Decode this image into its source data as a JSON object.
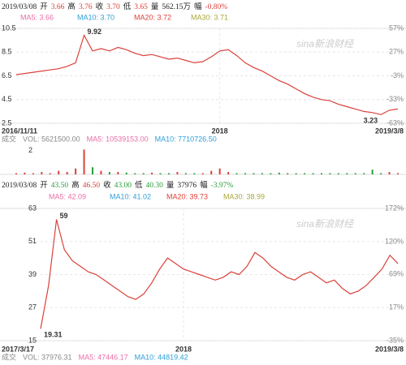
{
  "chart_data": [
    {
      "type": "line",
      "color": "#d9413a",
      "header": [
        {
          "text": "2019/03/08",
          "color": "#222"
        },
        {
          "text": "开",
          "color": "#222"
        },
        {
          "text": "3.66",
          "color": "#d9413a"
        },
        {
          "text": "高",
          "color": "#222"
        },
        {
          "text": "3.76",
          "color": "#d9413a"
        },
        {
          "text": "收",
          "color": "#222"
        },
        {
          "text": "3.70",
          "color": "#d9413a"
        },
        {
          "text": "低",
          "color": "#222"
        },
        {
          "text": "3.65",
          "color": "#d9413a"
        },
        {
          "text": "量",
          "color": "#222"
        },
        {
          "text": "562.15万",
          "color": "#222"
        },
        {
          "text": "幅",
          "color": "#222"
        },
        {
          "text": "-0.80%",
          "color": "#d9413a"
        }
      ],
      "legend": [
        {
          "text": "MA5: 3.66",
          "color": "#e86fa6"
        },
        {
          "text": "MA10: 3.70",
          "color": "#2e9fd8"
        },
        {
          "text": "MA20: 3.72",
          "color": "#e0413a"
        },
        {
          "text": "MA30: 3.71",
          "color": "#a8a83a"
        }
      ],
      "watermark": "sina新浪财经",
      "categories": [
        "2016/11/11",
        null,
        null,
        null,
        null,
        null,
        null,
        null,
        null,
        null,
        null,
        null,
        null,
        null,
        null,
        null,
        null,
        null,
        null,
        null,
        null,
        null,
        null,
        null,
        "2018",
        null,
        null,
        null,
        null,
        null,
        null,
        null,
        null,
        null,
        null,
        null,
        null,
        null,
        null,
        null,
        null,
        null,
        null,
        null,
        null,
        "2019/3/8"
      ],
      "values": [
        6.6,
        6.7,
        6.8,
        6.9,
        7.0,
        7.1,
        7.3,
        7.6,
        9.92,
        8.6,
        8.8,
        8.6,
        8.9,
        8.7,
        8.4,
        8.2,
        8.3,
        8.1,
        7.9,
        8.0,
        7.8,
        7.6,
        7.7,
        8.1,
        8.6,
        8.7,
        8.2,
        7.6,
        7.2,
        6.9,
        6.5,
        6.1,
        5.8,
        5.4,
        5.0,
        4.7,
        4.5,
        4.4,
        4.1,
        3.9,
        3.7,
        3.5,
        3.4,
        3.23,
        3.6,
        3.7
      ],
      "ylim": [
        2.5,
        10.5
      ],
      "yticks": [
        2.5,
        4.5,
        6.5,
        8.5,
        10.5
      ],
      "y2lim": [
        -63,
        57
      ],
      "y2ticks": [
        {
          "value": -63,
          "label": "-63%"
        },
        {
          "value": -33,
          "label": "-33%"
        },
        {
          "value": -3,
          "label": "-3%"
        },
        {
          "value": 27,
          "label": "27%"
        },
        {
          "value": 57,
          "label": "57%"
        }
      ],
      "grid": true,
      "volume_header": [
        {
          "text": "成交",
          "color": "#888"
        },
        {
          "text": "VOL: 5621500.00",
          "color": "#888"
        },
        {
          "text": "MA5: 10539153.00",
          "color": "#e86fa6"
        },
        {
          "text": "MA10: 7710726.50",
          "color": "#2e9fd8"
        }
      ],
      "volume": [
        0.1,
        0.15,
        0.1,
        0.2,
        0.1,
        0.3,
        0.2,
        0.5,
        2.1,
        0.6,
        0.3,
        0.2,
        0.2,
        0.15,
        0.1,
        0.1,
        0.15,
        0.1,
        0.1,
        0.2,
        0.1,
        0.1,
        0.1,
        0.3,
        0.5,
        0.2,
        0.1,
        0.1,
        0.1,
        0.1,
        0.1,
        0.15,
        0.1,
        0.1,
        0.1,
        0.1,
        0.1,
        0.1,
        0.1,
        0.1,
        0.1,
        0.1,
        0.4,
        0.1,
        0.2,
        0.1
      ],
      "volume_lim": [
        0,
        2.4
      ],
      "volume_ticks": [
        2
      ]
    },
    {
      "type": "line",
      "color": "#d9413a",
      "header": [
        {
          "text": "2019/03/08",
          "color": "#222"
        },
        {
          "text": "开",
          "color": "#222"
        },
        {
          "text": "43.50",
          "color": "#2a9d3a"
        },
        {
          "text": "高",
          "color": "#222"
        },
        {
          "text": "46.50",
          "color": "#d9413a"
        },
        {
          "text": "收",
          "color": "#222"
        },
        {
          "text": "43.00",
          "color": "#2a9d3a"
        },
        {
          "text": "低",
          "color": "#222"
        },
        {
          "text": "40.30",
          "color": "#2a9d3a"
        },
        {
          "text": "量",
          "color": "#222"
        },
        {
          "text": "37976",
          "color": "#222"
        },
        {
          "text": "幅",
          "color": "#222"
        },
        {
          "text": "-3.97%",
          "color": "#2a9d3a"
        }
      ],
      "legend": [
        {
          "text": "MA5: 42.09",
          "color": "#e86fa6"
        },
        {
          "text": "MA10: 41.02",
          "color": "#2e9fd8"
        },
        {
          "text": "MA20: 39.73",
          "color": "#e0413a"
        },
        {
          "text": "MA30: 38.99",
          "color": "#a8a83a"
        }
      ],
      "watermark": "sina新浪财经",
      "categories": [
        "2017/3/17",
        null,
        null,
        null,
        null,
        null,
        null,
        null,
        null,
        null,
        null,
        null,
        null,
        null,
        null,
        null,
        null,
        null,
        "2018",
        null,
        null,
        null,
        null,
        null,
        null,
        null,
        null,
        null,
        null,
        null,
        null,
        null,
        null,
        null,
        null,
        null,
        null,
        null,
        null,
        null,
        null,
        null,
        null,
        null,
        null,
        "2019/3/8"
      ],
      "values": [
        19.31,
        35,
        59.0,
        48,
        44,
        42,
        40,
        39,
        37,
        35,
        33,
        31,
        30,
        32,
        36,
        41,
        45,
        43,
        41,
        40,
        39,
        38,
        37,
        38,
        40,
        39,
        42,
        47,
        45,
        42,
        40,
        38,
        37,
        39,
        40,
        38,
        36,
        37,
        34,
        32,
        33,
        35,
        38,
        41,
        46,
        43
      ],
      "ylim": [
        15,
        63
      ],
      "yticks": [
        15,
        27,
        39,
        51,
        63
      ],
      "y2lim": [
        -35,
        172
      ],
      "y2ticks": [
        {
          "value": -35,
          "label": "-35%"
        },
        {
          "value": 17,
          "label": "17%"
        },
        {
          "value": 69,
          "label": "69%"
        },
        {
          "value": 120,
          "label": "120%"
        },
        {
          "value": 172,
          "label": "172%"
        }
      ],
      "grid": true,
      "volume_header": [
        {
          "text": "成交",
          "color": "#888"
        },
        {
          "text": "VOL: 37976.31",
          "color": "#888"
        },
        {
          "text": "MA5: 47446.17",
          "color": "#e86fa6"
        },
        {
          "text": "MA10: 44819.42",
          "color": "#2e9fd8"
        }
      ]
    }
  ]
}
